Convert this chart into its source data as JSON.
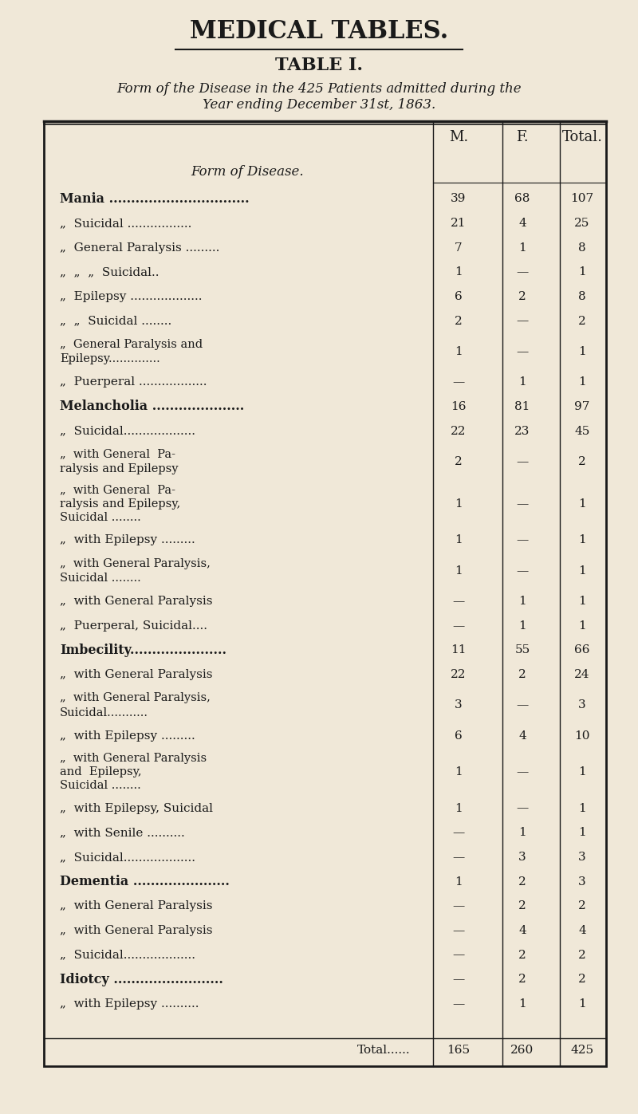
{
  "title": "MEDICAL TABLES.",
  "table_title": "TABLE I.",
  "subtitle_line1": "Form of the Disease in the 425 Patients admitted during the",
  "subtitle_line2": "Year ending December 31st, 1863.",
  "col_headers": [
    "M.",
    "F.",
    "Total."
  ],
  "col_header_label": "Form of Disease.",
  "bg_color": "#f0e8d8",
  "rows": [
    {
      "label": "Mania ................................",
      "indent": 0,
      "bold": true,
      "smallcaps": true,
      "m": "39",
      "f": "68",
      "total": "107"
    },
    {
      "label": "„  Suicidal .................",
      "indent": 1,
      "bold": false,
      "smallcaps": false,
      "m": "21",
      "f": "4",
      "total": "25"
    },
    {
      "label": "„  General Paralysis .........",
      "indent": 1,
      "bold": false,
      "smallcaps": false,
      "m": "7",
      "f": "1",
      "total": "8"
    },
    {
      "label": "„  „  „  Suicidal..",
      "indent": 1,
      "bold": false,
      "smallcaps": false,
      "m": "1",
      "f": "—",
      "total": "1"
    },
    {
      "label": "„  Epilepsy ...................",
      "indent": 1,
      "bold": false,
      "smallcaps": false,
      "m": "6",
      "f": "2",
      "total": "8"
    },
    {
      "label": "„  „  Suicidal ........",
      "indent": 1,
      "bold": false,
      "smallcaps": false,
      "m": "2",
      "f": "—",
      "total": "2"
    },
    {
      "label": "„  General Paralysis and ⎧\n     Epilepsy.............. ⎩",
      "indent": 1,
      "bold": false,
      "smallcaps": false,
      "multiline": true,
      "m": "1",
      "f": "—",
      "total": "1"
    },
    {
      "label": "„  Puerperal ..................",
      "indent": 1,
      "bold": false,
      "smallcaps": false,
      "m": "—",
      "f": "1",
      "total": "1"
    },
    {
      "label": "Melancholia .....................",
      "indent": 0,
      "bold": true,
      "smallcaps": true,
      "m": "16",
      "f": "81",
      "total": "97"
    },
    {
      "label": "„  Suicidal...................",
      "indent": 1,
      "bold": false,
      "smallcaps": false,
      "m": "22",
      "f": "23",
      "total": "45"
    },
    {
      "label": "„  with General  Pa- ⎧\n     ralysis and Epilepsy ⎩",
      "indent": 1,
      "bold": false,
      "smallcaps": false,
      "multiline": true,
      "m": "2",
      "f": "—",
      "total": "2"
    },
    {
      "label": "„  with General  Pa- ⎧\n     ralysis and Epilepsy,\n     Suicidal ........ ⎩",
      "indent": 1,
      "bold": false,
      "smallcaps": false,
      "multiline": true,
      "m": "1",
      "f": "—",
      "total": "1"
    },
    {
      "label": "„  with Epilepsy .........",
      "indent": 1,
      "bold": false,
      "smallcaps": false,
      "m": "1",
      "f": "—",
      "total": "1"
    },
    {
      "label": "„  with General Paralysis, ⎧\n     Suicidal ........ ⎩",
      "indent": 1,
      "bold": false,
      "smallcaps": false,
      "multiline": true,
      "m": "1",
      "f": "—",
      "total": "1"
    },
    {
      "label": "„  with General Paralysis",
      "indent": 1,
      "bold": false,
      "smallcaps": false,
      "m": "—",
      "f": "1",
      "total": "1"
    },
    {
      "label": "„  Puerperal, Suicidal....",
      "indent": 1,
      "bold": false,
      "smallcaps": false,
      "m": "—",
      "f": "1",
      "total": "1"
    },
    {
      "label": "Imbecility......................",
      "indent": 0,
      "bold": true,
      "smallcaps": true,
      "m": "11",
      "f": "55",
      "total": "66"
    },
    {
      "label": "„  with General Paralysis",
      "indent": 1,
      "bold": false,
      "smallcaps": false,
      "m": "22",
      "f": "2",
      "total": "24"
    },
    {
      "label": "„  with General Paralysis, ⎧\n     Suicidal........... ⎩",
      "indent": 1,
      "bold": false,
      "smallcaps": false,
      "multiline": true,
      "m": "3",
      "f": "—",
      "total": "3"
    },
    {
      "label": "„  with Epilepsy .........",
      "indent": 1,
      "bold": false,
      "smallcaps": false,
      "m": "6",
      "f": "4",
      "total": "10"
    },
    {
      "label": "„  with General Paralysis ⎧\n     and  Epilepsy,\n     Suicidal ........ ⎩",
      "indent": 1,
      "bold": false,
      "smallcaps": false,
      "multiline": true,
      "m": "1",
      "f": "—",
      "total": "1"
    },
    {
      "label": "„  with Epilepsy, Suicidal",
      "indent": 1,
      "bold": false,
      "smallcaps": false,
      "m": "1",
      "f": "—",
      "total": "1"
    },
    {
      "label": "„  with Senile ..........",
      "indent": 1,
      "bold": false,
      "smallcaps": false,
      "m": "—",
      "f": "1",
      "total": "1"
    },
    {
      "label": "„  Suicidal...................",
      "indent": 1,
      "bold": false,
      "smallcaps": false,
      "m": "—",
      "f": "3",
      "total": "3"
    },
    {
      "label": "Dementia ......................",
      "indent": 0,
      "bold": true,
      "smallcaps": true,
      "m": "1",
      "f": "2",
      "total": "3"
    },
    {
      "label": "„  with General Paralysis",
      "indent": 1,
      "bold": false,
      "smallcaps": false,
      "m": "—",
      "f": "2",
      "total": "2"
    },
    {
      "label": "„  with General Paralysis",
      "indent": 1,
      "bold": false,
      "smallcaps": false,
      "m": "—",
      "f": "4",
      "total": "4"
    },
    {
      "label": "„  Suicidal...................",
      "indent": 1,
      "bold": false,
      "smallcaps": false,
      "m": "—",
      "f": "2",
      "total": "2"
    },
    {
      "label": "Idiotcy .........................",
      "indent": 0,
      "bold": true,
      "smallcaps": true,
      "m": "—",
      "f": "2",
      "total": "2"
    },
    {
      "label": "„  with Epilepsy ..........",
      "indent": 1,
      "bold": false,
      "smallcaps": false,
      "m": "—",
      "f": "1",
      "total": "1"
    }
  ],
  "total_row": {
    "label": "Total......",
    "m": "165",
    "f": "260",
    "total": "425"
  }
}
